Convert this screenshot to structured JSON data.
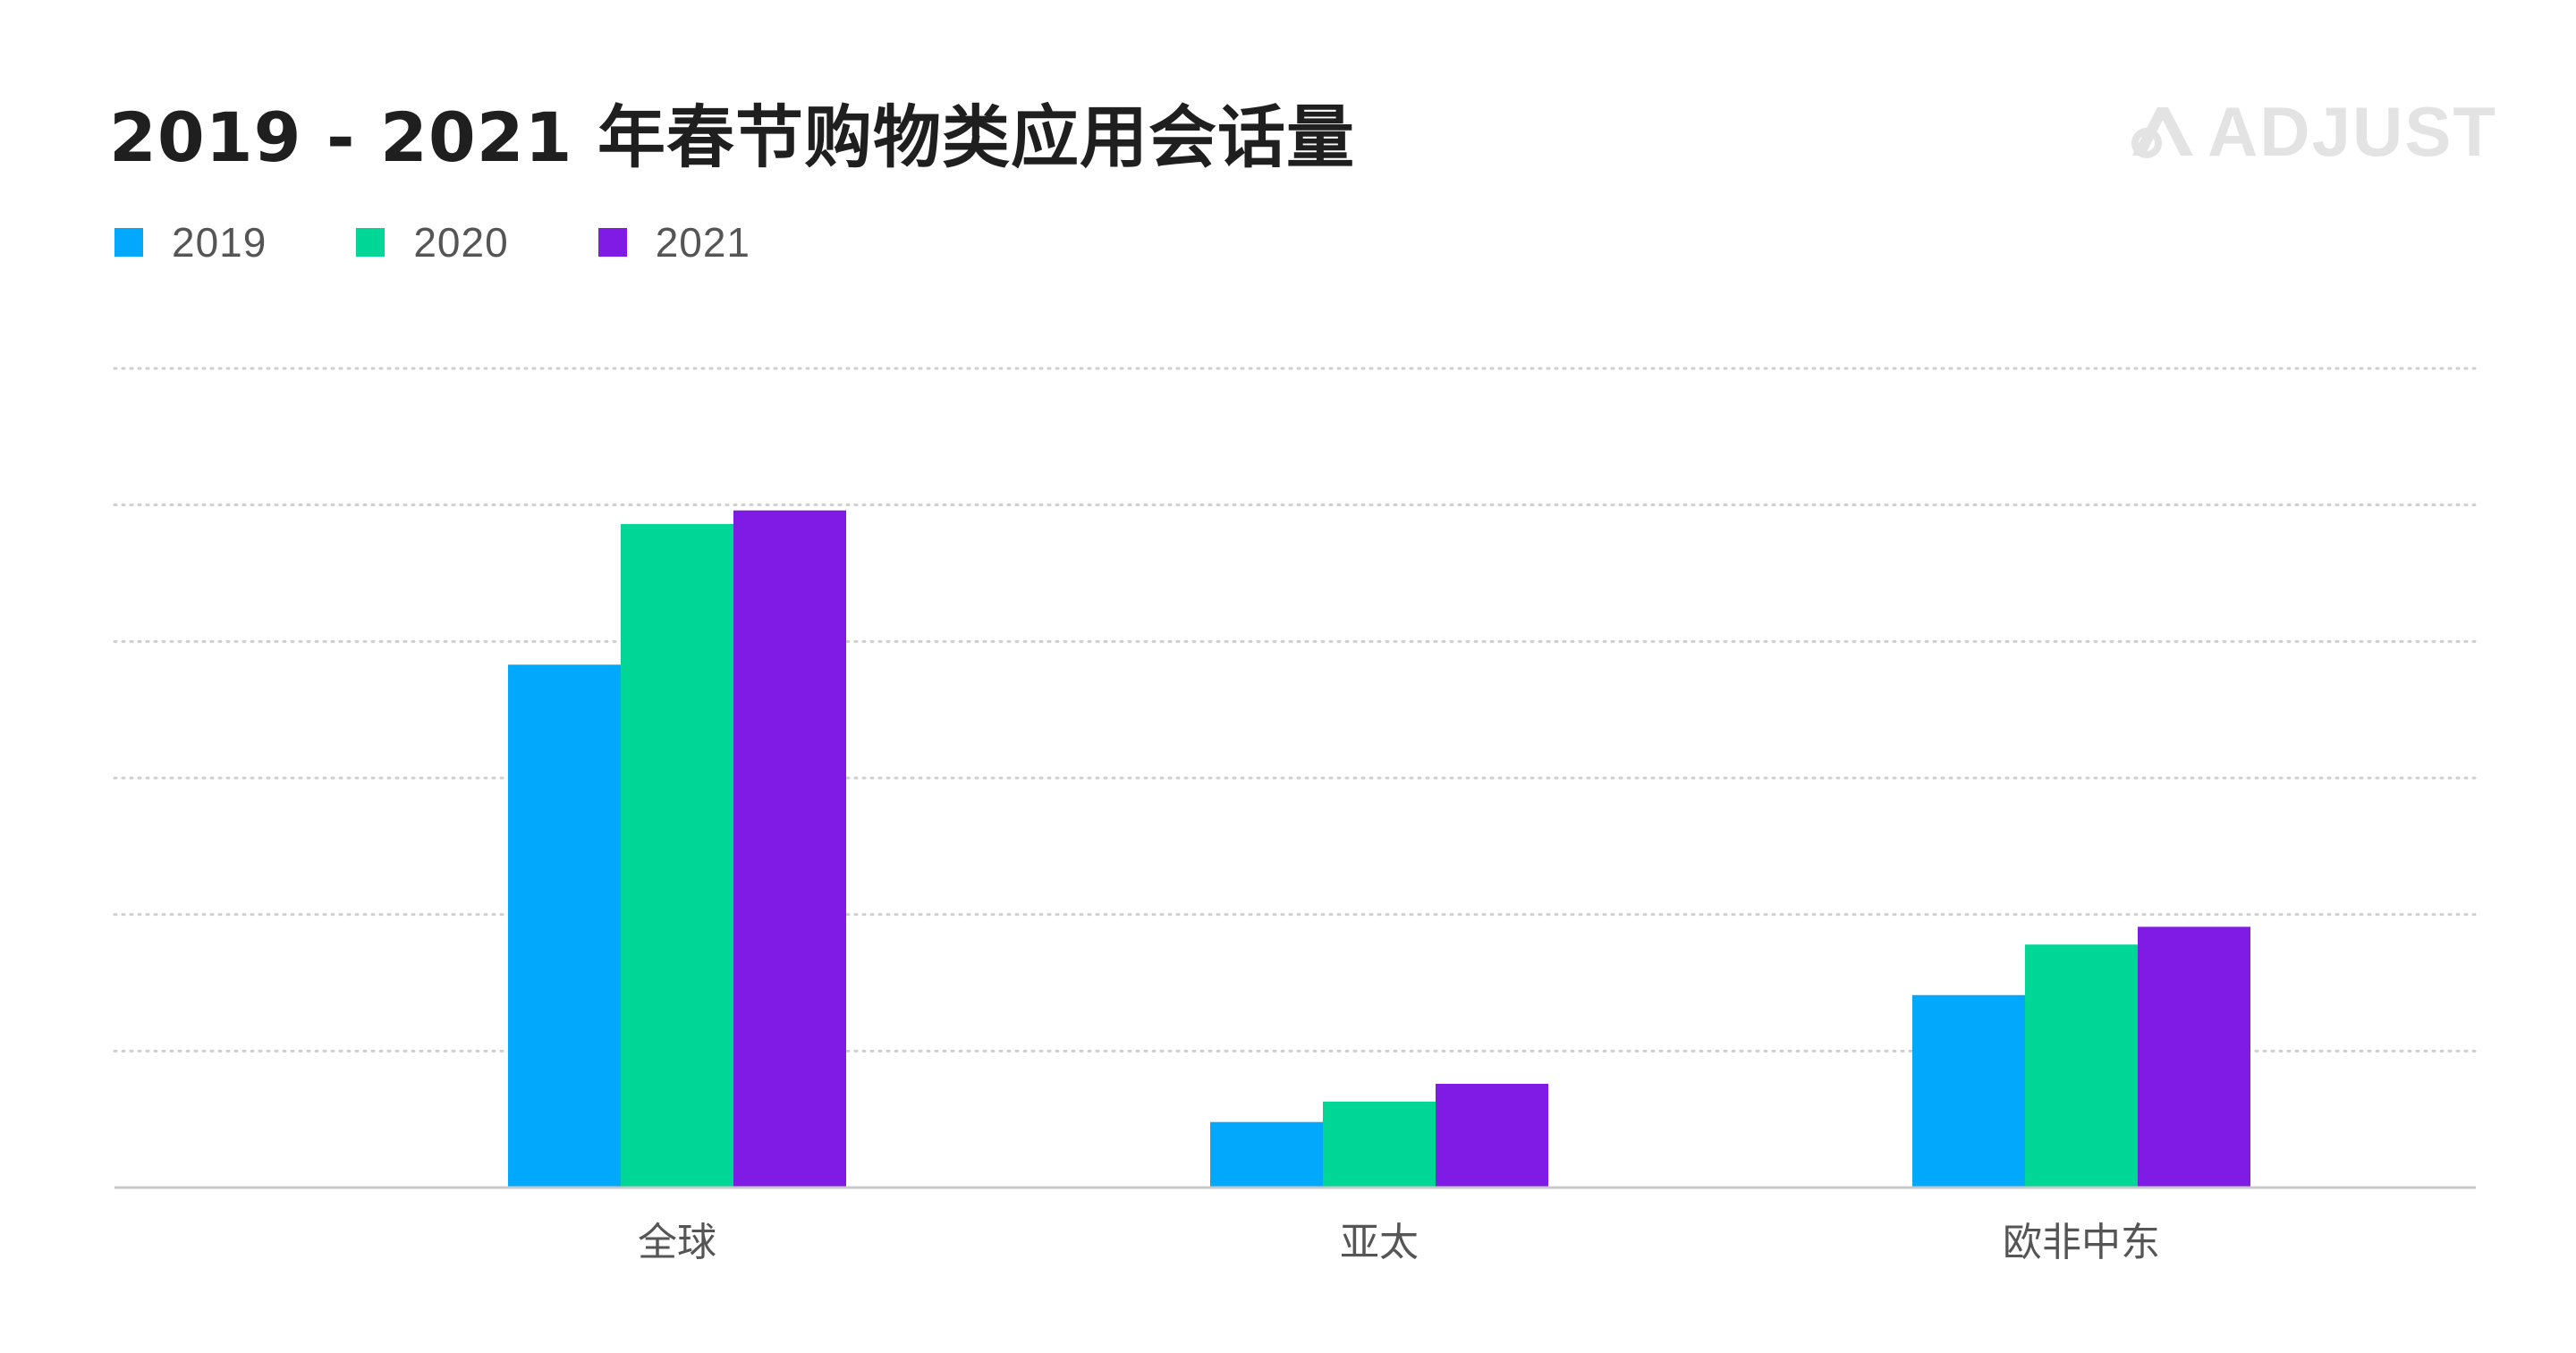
{
  "title": "2019 - 2021 年春节购物类应用会话量",
  "logo": {
    "text": "ADJUST",
    "color": "#e3e3e3"
  },
  "colors": {
    "series": [
      "#02a8fb",
      "#00d695",
      "#7f1be5"
    ],
    "grid": "#cfcfcf",
    "baseline": "#c9c9c9",
    "tick_text": "#555555",
    "title_text": "#1f1f1f"
  },
  "chart_data": {
    "type": "bar",
    "title": "2019 - 2021 年春节购物类应用会话量",
    "xlabel": "",
    "ylabel": "",
    "categories": [
      "全球",
      "亚太",
      "欧非中东"
    ],
    "series": [
      {
        "name": "2019",
        "values": [
          3.83,
          0.48,
          1.41
        ]
      },
      {
        "name": "2020",
        "values": [
          4.86,
          0.63,
          1.78
        ]
      },
      {
        "name": "2021",
        "values": [
          4.96,
          0.76,
          1.91
        ]
      }
    ],
    "ylim": [
      0,
      6
    ],
    "yticks": [
      0,
      1,
      2,
      3,
      4,
      5,
      6
    ],
    "ytick_labels_visible": false,
    "grid": true,
    "grid_style": "dotted",
    "legend_position": "top-left"
  }
}
